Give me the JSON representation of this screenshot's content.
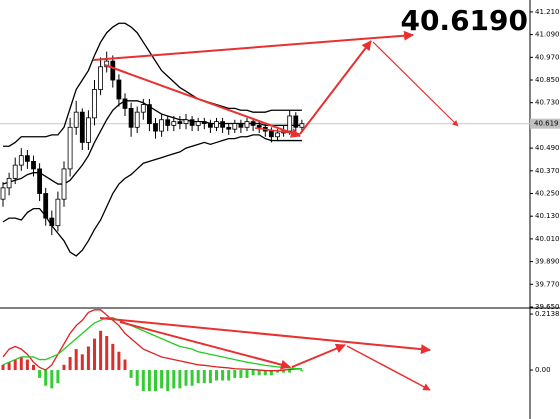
{
  "chart_data": [
    {
      "type": "candlestick",
      "annotation": "40.6190",
      "annotation_color": "#66dd22",
      "up_fill": "#ffffff",
      "down_fill": "#000000",
      "candle_color": "#000000",
      "open": [
        40.22,
        40.28,
        40.33,
        40.4,
        40.45,
        40.42,
        40.38,
        40.25,
        40.12,
        40.08,
        40.22,
        40.38,
        40.6,
        40.68,
        40.52,
        40.65,
        40.8,
        40.92,
        40.95,
        40.85,
        40.75,
        40.7,
        40.6,
        40.68,
        40.72,
        40.62,
        40.58,
        40.64,
        40.61,
        40.63,
        40.62,
        40.64,
        40.61,
        40.63,
        40.62,
        40.6,
        40.63,
        40.6,
        40.59,
        40.62,
        40.6,
        40.63,
        40.61,
        40.6,
        40.58,
        40.55,
        40.57,
        40.58,
        40.66,
        40.6
      ],
      "high": [
        40.31,
        40.36,
        40.44,
        40.49,
        40.48,
        40.45,
        40.41,
        40.28,
        40.16,
        40.26,
        40.42,
        40.65,
        40.74,
        40.7,
        40.69,
        40.85,
        40.97,
        41.0,
        40.98,
        40.88,
        40.78,
        40.73,
        40.71,
        40.75,
        40.75,
        40.65,
        40.67,
        40.66,
        40.66,
        40.66,
        40.67,
        40.66,
        40.65,
        40.65,
        40.64,
        40.65,
        40.65,
        40.62,
        40.64,
        40.64,
        40.65,
        40.65,
        40.63,
        40.62,
        40.6,
        40.59,
        40.61,
        40.69,
        40.68,
        40.64
      ],
      "low": [
        40.18,
        40.24,
        40.3,
        40.37,
        40.38,
        40.34,
        40.21,
        40.08,
        40.03,
        40.05,
        40.18,
        40.34,
        40.56,
        40.48,
        40.48,
        40.61,
        40.77,
        40.89,
        40.81,
        40.71,
        40.66,
        40.55,
        40.57,
        40.64,
        40.58,
        40.54,
        40.55,
        40.58,
        40.58,
        40.59,
        40.59,
        40.58,
        40.58,
        40.59,
        40.57,
        40.58,
        40.57,
        40.56,
        40.57,
        40.57,
        40.58,
        40.58,
        40.57,
        40.55,
        40.52,
        40.53,
        40.55,
        40.56,
        40.57,
        40.58
      ],
      "close": [
        40.28,
        40.33,
        40.4,
        40.45,
        40.42,
        40.38,
        40.25,
        40.12,
        40.08,
        40.22,
        40.38,
        40.6,
        40.68,
        40.52,
        40.65,
        40.8,
        40.92,
        40.95,
        40.85,
        40.75,
        40.7,
        40.6,
        40.68,
        40.72,
        40.62,
        40.58,
        40.64,
        40.61,
        40.63,
        40.62,
        40.64,
        40.61,
        40.63,
        40.62,
        40.6,
        40.63,
        40.6,
        40.59,
        40.62,
        40.6,
        40.63,
        40.61,
        40.6,
        40.58,
        40.55,
        40.57,
        40.58,
        40.66,
        40.6,
        40.619
      ],
      "series": [
        {
          "color": "#000000",
          "values": [
            40.5,
            40.5,
            40.52,
            40.55,
            40.55,
            40.55,
            40.55,
            40.55,
            40.56,
            40.56,
            40.6,
            40.7,
            40.8,
            40.85,
            40.9,
            40.98,
            41.05,
            41.1,
            41.13,
            41.15,
            41.15,
            41.13,
            41.1,
            41.05,
            41.0,
            40.95,
            40.9,
            40.87,
            40.84,
            40.81,
            40.79,
            40.77,
            40.75,
            40.74,
            40.73,
            40.72,
            40.71,
            40.7,
            40.7,
            40.69,
            40.69,
            40.68,
            40.68,
            40.68,
            40.69,
            40.69,
            40.69,
            40.69,
            40.69,
            40.69
          ]
        },
        {
          "color": "#000000",
          "values": [
            40.3,
            40.31,
            40.32,
            40.33,
            40.35,
            40.36,
            40.36,
            40.34,
            40.32,
            40.3,
            40.3,
            40.32,
            40.36,
            40.4,
            40.45,
            40.52,
            40.58,
            40.64,
            40.69,
            40.72,
            40.74,
            40.74,
            40.74,
            40.73,
            40.71,
            40.69,
            40.67,
            40.66,
            40.65,
            40.64,
            40.64,
            40.63,
            40.63,
            40.63,
            40.62,
            40.62,
            40.62,
            40.62,
            40.62,
            40.62,
            40.62,
            40.62,
            40.62,
            40.61,
            40.61,
            40.61,
            40.61,
            40.61,
            40.61,
            40.61
          ]
        },
        {
          "color": "#000000",
          "values": [
            40.1,
            40.12,
            40.12,
            40.11,
            40.15,
            40.17,
            40.17,
            40.13,
            40.08,
            40.04,
            40.0,
            39.94,
            39.92,
            39.95,
            40.0,
            40.06,
            40.11,
            40.18,
            40.25,
            40.3,
            40.33,
            40.35,
            40.38,
            40.41,
            40.42,
            40.43,
            40.44,
            40.45,
            40.46,
            40.47,
            40.49,
            40.5,
            40.51,
            40.52,
            40.51,
            40.52,
            40.53,
            40.54,
            40.54,
            40.55,
            40.55,
            40.56,
            40.56,
            40.54,
            40.53,
            40.53,
            40.53,
            40.53,
            40.53,
            40.53
          ]
        }
      ],
      "last_price": {
        "value": 40.619,
        "label": "40.619"
      },
      "ylim": [
        39.65,
        41.273
      ],
      "yticks": [
        {
          "value": 41.21,
          "label": "41.210"
        },
        {
          "value": 41.09,
          "label": "41.090"
        },
        {
          "value": 40.97,
          "label": "40.970"
        },
        {
          "value": 40.85,
          "label": "40.850"
        },
        {
          "value": 40.73,
          "label": "40.730"
        },
        {
          "value": 40.49,
          "label": "40.490"
        },
        {
          "value": 40.37,
          "label": "40.370"
        },
        {
          "value": 40.25,
          "label": "40.250"
        },
        {
          "value": 40.13,
          "label": "40.130"
        },
        {
          "value": 40.01,
          "label": "40.010"
        },
        {
          "value": 39.89,
          "label": "39.890"
        },
        {
          "value": 39.77,
          "label": "39.770"
        },
        {
          "value": 39.65,
          "label": "39.650"
        }
      ]
    },
    {
      "type": "macd",
      "positive_color": "#d9302c",
      "negative_color": "#33cc33",
      "values": [
        0.02,
        0.03,
        0.04,
        0.05,
        0.04,
        0.02,
        -0.03,
        -0.06,
        -0.07,
        -0.05,
        0.02,
        0.05,
        0.08,
        0.06,
        0.09,
        0.12,
        0.15,
        0.13,
        0.1,
        0.07,
        0.04,
        -0.03,
        -0.06,
        -0.08,
        -0.08,
        -0.08,
        -0.07,
        -0.08,
        -0.07,
        -0.07,
        -0.06,
        -0.06,
        -0.05,
        -0.05,
        -0.05,
        -0.04,
        -0.04,
        -0.04,
        -0.03,
        -0.03,
        -0.03,
        -0.02,
        -0.02,
        -0.02,
        -0.02,
        -0.01,
        -0.01,
        -0.01,
        0.0,
        -0.005
      ],
      "series": [
        {
          "color": "#dd2222",
          "values": [
            0.05,
            0.08,
            0.09,
            0.08,
            0.06,
            0.03,
            0.01,
            0.0,
            0.02,
            0.06,
            0.1,
            0.14,
            0.17,
            0.19,
            0.22,
            0.23,
            0.23,
            0.21,
            0.19,
            0.17,
            0.14,
            0.12,
            0.1,
            0.08,
            0.07,
            0.06,
            0.05,
            0.045,
            0.04,
            0.035,
            0.03,
            0.025,
            0.02,
            0.018,
            0.015,
            0.012,
            0.01,
            0.008,
            0.005,
            0.004,
            0.003,
            0.002,
            0.0,
            -0.002,
            -0.003,
            -0.002,
            0.0,
            0.002,
            0.004,
            0.004
          ]
        },
        {
          "color": "#22cc22",
          "values": [
            0.02,
            0.03,
            0.04,
            0.05,
            0.05,
            0.05,
            0.04,
            0.04,
            0.05,
            0.06,
            0.08,
            0.1,
            0.12,
            0.14,
            0.16,
            0.18,
            0.19,
            0.2,
            0.2,
            0.19,
            0.18,
            0.17,
            0.16,
            0.15,
            0.14,
            0.13,
            0.12,
            0.11,
            0.1,
            0.09,
            0.085,
            0.08,
            0.07,
            0.065,
            0.06,
            0.055,
            0.05,
            0.045,
            0.04,
            0.035,
            0.03,
            0.026,
            0.022,
            0.018,
            0.015,
            0.012,
            0.01,
            0.008,
            0.006,
            0.005
          ]
        }
      ],
      "ylim": [
        -0.187,
        0.237
      ],
      "yticks": [
        0.21383,
        {
          "value": 0,
          "label": "0.00"
        }
      ]
    }
  ]
}
